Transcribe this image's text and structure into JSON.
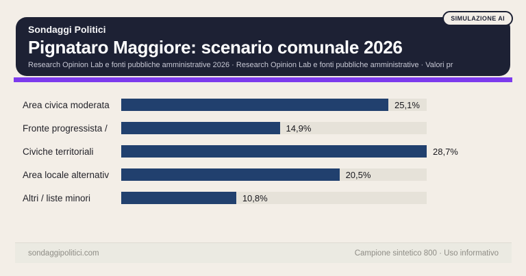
{
  "badge": {
    "label": "SIMULAZIONE AI"
  },
  "header": {
    "kicker": "Sondaggi Politici",
    "title": "Pignataro Maggiore: scenario comunale 2026",
    "subtitle": "Research Opinion Lab e fonti pubbliche amministrative 2026 · Research Opinion Lab e fonti pubbliche amministrative · Valori pr"
  },
  "footer": {
    "left": "sondaggipolitici.com",
    "right": "Campione sintetico 800 · Uso informativo"
  },
  "colors": {
    "page_bg": "#f3eee7",
    "card_bg": "#1d2134",
    "accent_purple": "#7c3aed",
    "bar_fill": "#21406e",
    "bar_track": "#e6e2d9",
    "footer_bg": "#ebeae2"
  },
  "chart_data": {
    "type": "bar",
    "orientation": "horizontal",
    "title": "Pignataro Maggiore: scenario comunale 2026",
    "categories": [
      "Area civica moderata",
      "Fronte progressista /",
      "Civiche territoriali",
      "Area locale alternativ",
      "Altri / liste minori"
    ],
    "values": [
      25.1,
      14.9,
      28.7,
      20.5,
      10.8
    ],
    "value_labels": [
      "25,1%",
      "14,9%",
      "28,7%",
      "20,5%",
      "10,8%"
    ],
    "unit": "%",
    "xlim": [
      0,
      28.7
    ],
    "grid": false,
    "legend": false,
    "value_label_position": "end-of-bar"
  }
}
